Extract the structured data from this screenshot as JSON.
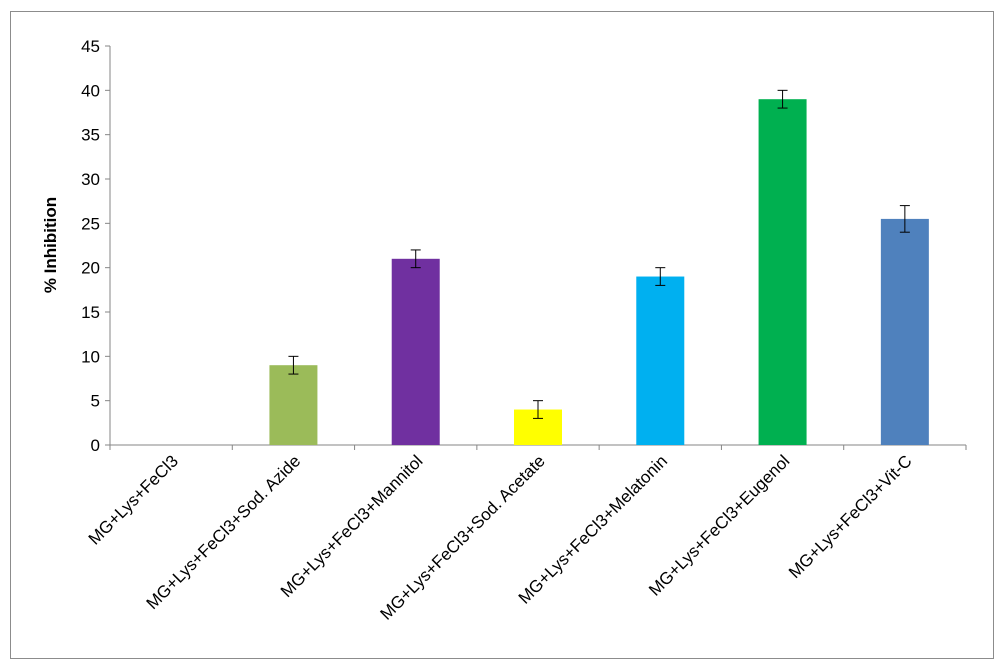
{
  "chart_data": {
    "type": "bar",
    "title": "",
    "xlabel": "",
    "ylabel": "% Inhibition",
    "ylim": [
      0,
      45
    ],
    "yticks": [
      0,
      5,
      10,
      15,
      20,
      25,
      30,
      35,
      40,
      45
    ],
    "grid": false,
    "legend": "none",
    "categories": [
      "MG+Lys+FeCl3",
      "MG+Lys+FeCl3+Sod. Azide",
      "MG+Lys+FeCl3+Mannitol",
      "MG+Lys+FeCl3+Sod. Acetate",
      "MG+Lys+FeCl3+Melatonin",
      "MG+Lys+FeCl3+Eugenol",
      "MG+Lys+FeCl3+Vit-C"
    ],
    "values": [
      0,
      9,
      21,
      4,
      19,
      39,
      25.5
    ],
    "error": [
      0,
      1,
      1,
      1,
      1,
      1,
      1.5
    ],
    "colors": [
      "#9bbb59",
      "#9bbb59",
      "#7030a0",
      "#ffff00",
      "#00b0f0",
      "#00b050",
      "#4f81bd"
    ]
  }
}
